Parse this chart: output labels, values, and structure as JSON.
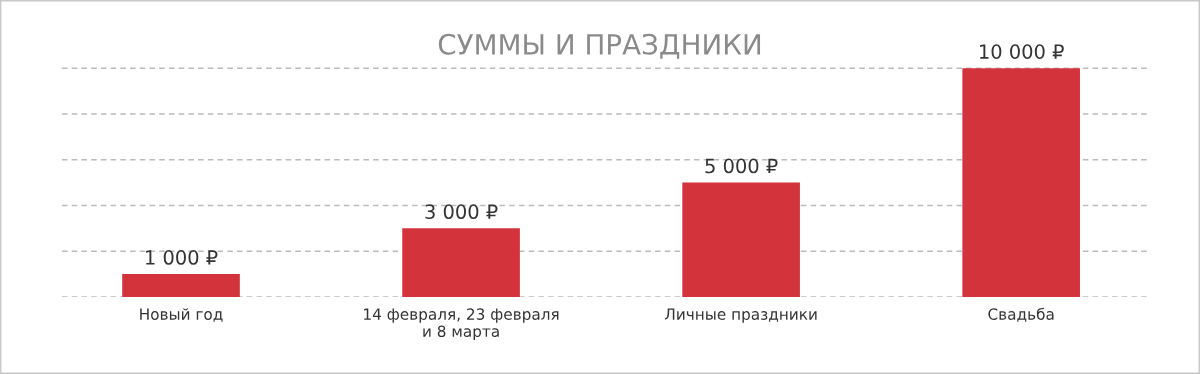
{
  "chart_data": {
    "type": "bar",
    "title": "СУММЫ И ПРАЗДНИКИ",
    "categories": [
      "Новый год",
      "14 февраля, 23 февраля\nи 8 марта",
      "Личные праздники",
      "Свадьба"
    ],
    "values": [
      1000,
      3000,
      5000,
      10000
    ],
    "value_labels": [
      "1 000 ₽",
      "3 000 ₽",
      "5 000 ₽",
      "10 000 ₽"
    ],
    "color": "#d3343c",
    "yticks": [
      {
        "value": 0,
        "label": null
      },
      {
        "value": 2000,
        "label": null
      },
      {
        "value": 4000,
        "label": null
      },
      {
        "value": 6000,
        "label": null
      },
      {
        "value": 8000,
        "label": null
      },
      {
        "value": 10000,
        "label": null
      }
    ],
    "grid": "y",
    "tick_labels": "x",
    "legend": false
  }
}
